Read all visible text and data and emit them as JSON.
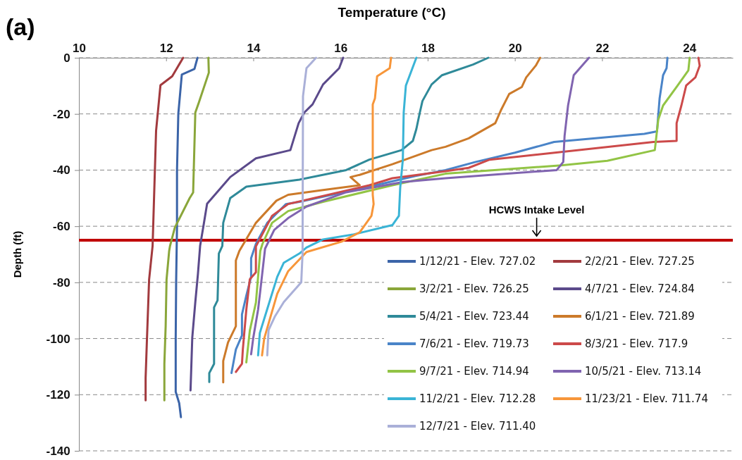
{
  "chart_data": {
    "type": "line",
    "title": "(a)",
    "xlabel": "Temperature (°C)",
    "ylabel": "Depth (ft)",
    "xlim": [
      10,
      25
    ],
    "xticks": [
      10,
      12,
      14,
      16,
      18,
      20,
      22,
      24
    ],
    "ylim": [
      -140,
      0
    ],
    "yticks": [
      -140,
      -120,
      -100,
      -80,
      -60,
      -40,
      -20,
      0
    ],
    "grid": "y",
    "legend": "bottom right",
    "marker": "none",
    "line_style": "solid",
    "ref_lines": [
      {
        "axis": "y",
        "value": -65,
        "label": "HCWS Intake Level",
        "color": "#c00000"
      }
    ],
    "series": [
      {
        "name": "1/12/21 - Elev. 727.02",
        "color": "#3b64a8",
        "x": [
          12.72,
          12.65,
          12.36,
          12.28,
          12.25,
          12.25,
          12.23,
          12.22,
          12.22,
          12.3,
          12.34
        ],
        "values": [
          0,
          -4,
          -6,
          -20,
          -40,
          -60,
          -80,
          -100,
          -119,
          -123,
          -128
        ]
      },
      {
        "name": "2/2/21 - Elev. 727.25",
        "color": "#a23a3e",
        "x": [
          12.39,
          12.14,
          11.87,
          11.77,
          11.69,
          11.61,
          11.56,
          11.53,
          11.53
        ],
        "values": [
          0,
          -6.6,
          -9.8,
          -26,
          -67,
          -79,
          -100.5,
          -114,
          -122
        ]
      },
      {
        "name": "3/2/21 - Elev. 726.25",
        "color": "#8aa63a",
        "x": [
          12.97,
          12.98,
          12.75,
          12.67,
          12.62,
          12.54,
          12.2,
          12.09,
          12.07,
          12.01,
          11.99,
          11.96,
          11.96
        ],
        "values": [
          0,
          -5.3,
          -16,
          -19.5,
          -48,
          -50,
          -60.5,
          -67,
          -68.8,
          -79,
          -95.5,
          -109,
          -122
        ]
      },
      {
        "name": "4/7/21 - Elev. 724.84",
        "color": "#5b4a8b",
        "x": [
          16.06,
          15.97,
          15.6,
          15.36,
          15.17,
          15.04,
          14.85,
          14.06,
          13.47,
          12.94,
          12.86,
          12.78,
          12.73,
          12.67,
          12.6,
          12.56
        ],
        "values": [
          0,
          -3.7,
          -9.5,
          -16.6,
          -19.5,
          -23.3,
          -32.9,
          -35.8,
          -42.5,
          -52,
          -59.6,
          -67,
          -77,
          -87,
          -99.7,
          -118.5
        ]
      },
      {
        "name": "5/4/21 - Elev. 723.44",
        "color": "#2f8a99",
        "x": [
          19.39,
          19.04,
          18.33,
          18.09,
          17.88,
          17.82,
          17.74,
          17.66,
          17.4,
          16.66,
          16.13,
          15.06,
          13.84,
          13.47,
          13.31,
          13.29,
          13.21,
          13.18,
          13.1,
          13.1,
          12.99,
          12.99
        ],
        "values": [
          0,
          -2.4,
          -6.2,
          -9.5,
          -15.4,
          -19.5,
          -25.4,
          -29.6,
          -32.9,
          -36.3,
          -40,
          -43.4,
          -45.9,
          -50,
          -58.8,
          -67,
          -69.7,
          -86.4,
          -88.9,
          -109,
          -112.3,
          -115.5
        ]
      },
      {
        "name": "6/1/21 - Elev. 721.89",
        "color": "#cc7a2a",
        "x": [
          20.58,
          20.48,
          20.26,
          20.16,
          19.87,
          19.68,
          19.55,
          18.94,
          18.41,
          18.09,
          17.19,
          16.44,
          16.23,
          16.44,
          15.6,
          14.8,
          14.53,
          14.06,
          13.68,
          13.6,
          13.6,
          13.42,
          13.31,
          13.31
        ],
        "values": [
          0,
          -2.8,
          -7,
          -10.4,
          -12.9,
          -18.7,
          -23.3,
          -28.7,
          -31.7,
          -32.9,
          -37.9,
          -41.7,
          -42.5,
          -45.4,
          -47.1,
          -48.8,
          -50.9,
          -58.8,
          -68.8,
          -72.2,
          -95.6,
          -101.4,
          -108,
          -115.6
        ]
      },
      {
        "name": "7/6/21 - Elev. 719.73",
        "color": "#4a84c8",
        "x": [
          23.5,
          23.48,
          23.4,
          23.32,
          23.26,
          22.97,
          20.9,
          20.0,
          19.1,
          18.41,
          17.72,
          16.66,
          15.06,
          14.75,
          14.53,
          14.32,
          14.06,
          13.95,
          13.95,
          13.84,
          13.74,
          13.74,
          13.6,
          13.5
        ],
        "values": [
          0,
          -3.7,
          -6.2,
          -14.5,
          -26.2,
          -27.1,
          -30,
          -33.8,
          -37.1,
          -40,
          -42.1,
          -45.9,
          -51.3,
          -52.1,
          -55.5,
          -58.8,
          -66.3,
          -71.4,
          -78,
          -84.7,
          -91.4,
          -98.9,
          -103.9,
          -112.3
        ]
      },
      {
        "name": "8/3/21 - Elev. 717.9",
        "color": "#cc4a4a",
        "x": [
          24.21,
          24.24,
          24.14,
          23.93,
          23.82,
          23.71,
          23.71,
          23.18,
          19.42,
          18.94,
          18.41,
          17.19,
          16.66,
          14.8,
          14.43,
          14.06,
          14.06,
          14.06,
          13.92,
          13.84,
          13.76,
          13.74,
          13.6
        ],
        "values": [
          0,
          -2.8,
          -7,
          -9.9,
          -17,
          -23.3,
          -29.6,
          -30,
          -36.3,
          -39.2,
          -40.4,
          -42.9,
          -45.4,
          -52.1,
          -56.3,
          -67.2,
          -68.8,
          -76.4,
          -78.9,
          -89.7,
          -103.9,
          -109,
          -111.9
        ]
      },
      {
        "name": "9/7/21 - Elev. 714.94",
        "color": "#92c445",
        "x": [
          24.01,
          23.98,
          23.71,
          23.4,
          23.29,
          23.21,
          22.12,
          21.06,
          18.41,
          17.19,
          15.6,
          14.8,
          14.43,
          14.21,
          14.16,
          14.06,
          13.92,
          13.84
        ],
        "values": [
          0,
          -4.5,
          -10.4,
          -17,
          -22,
          -32.9,
          -36.7,
          -38.3,
          -41.3,
          -45.4,
          -51.3,
          -54.6,
          -58.8,
          -66.3,
          -68.8,
          -87.2,
          -97.2,
          -108.5
        ]
      },
      {
        "name": "10/5/21 - Elev. 713.14",
        "color": "#8064b0",
        "x": [
          21.7,
          21.35,
          21.22,
          21.14,
          21.11,
          20.96,
          18.41,
          17.45,
          16.13,
          15.22,
          14.8,
          14.48,
          14.27,
          14.16,
          14.11,
          14.0,
          13.95
        ],
        "values": [
          0,
          -6.2,
          -17,
          -27.9,
          -37.1,
          -40,
          -42.9,
          -44.2,
          -47.9,
          -53,
          -57.1,
          -61.3,
          -68,
          -83,
          -89.7,
          -99.7,
          -105.6
        ]
      },
      {
        "name": "11/2/21 - Elev. 712.28",
        "color": "#3ab4d6",
        "x": [
          17.74,
          17.5,
          17.45,
          17.43,
          17.37,
          17.34,
          17.19,
          16.28,
          15.6,
          15.22,
          15.06,
          14.7,
          14.55,
          14.35,
          14.15,
          14.11
        ],
        "values": [
          0,
          -9.9,
          -19.5,
          -36.3,
          -46.3,
          -56.3,
          -59.6,
          -63,
          -64.7,
          -67.6,
          -69.7,
          -73,
          -78,
          -88,
          -98,
          -106
        ]
      },
      {
        "name": "11/23/21 - Elev. 711.74",
        "color": "#f7963a",
        "x": [
          17.16,
          17.13,
          16.84,
          16.79,
          16.74,
          16.74,
          16.76,
          16.71,
          16.44,
          16.02,
          15.22,
          14.8,
          14.55,
          14.4,
          14.25,
          14.2
        ],
        "values": [
          0,
          -3.7,
          -6.6,
          -14.5,
          -16.6,
          -48.8,
          -52.1,
          -56.3,
          -62.2,
          -65.5,
          -69.2,
          -76,
          -84,
          -92,
          -100,
          -106
        ]
      },
      {
        "name": "12/7/21 - Elev. 711.40",
        "color": "#aab0d8",
        "x": [
          15.44,
          15.22,
          15.14,
          15.13,
          15.1,
          14.7,
          14.5,
          14.35,
          14.32
        ],
        "values": [
          0,
          -3.7,
          -13.7,
          -69.7,
          -80,
          -87,
          -92,
          -97,
          -106
        ]
      }
    ]
  }
}
